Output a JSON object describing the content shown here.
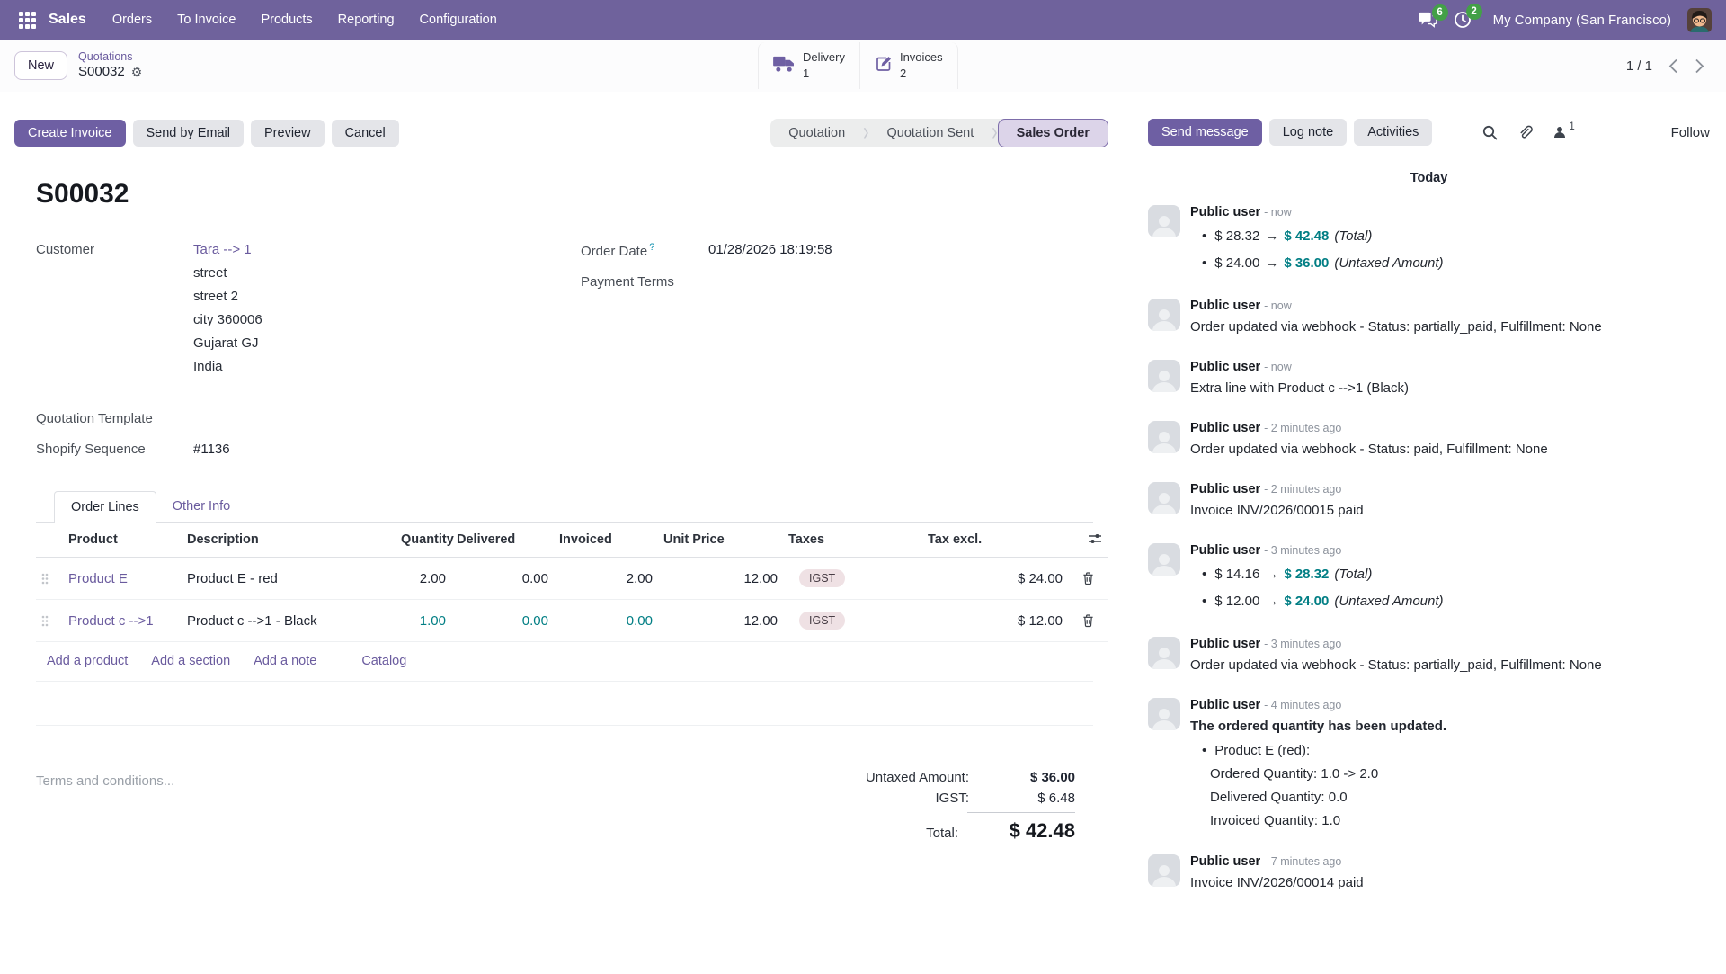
{
  "navbar": {
    "app_name": "Sales",
    "menus": [
      "Orders",
      "To Invoice",
      "Products",
      "Reporting",
      "Configuration"
    ],
    "messages_badge": "6",
    "activities_badge": "2",
    "company": "My Company (San Francisco)"
  },
  "control_panel": {
    "new_button": "New",
    "breadcrumb_parent": "Quotations",
    "breadcrumb_current": "S00032",
    "smart_buttons": [
      {
        "label": "Delivery",
        "value": "1",
        "icon": "truck-icon"
      },
      {
        "label": "Invoices",
        "value": "2",
        "icon": "invoice-edit-icon"
      }
    ],
    "pager": "1 / 1"
  },
  "actions": {
    "create_invoice": "Create Invoice",
    "send_by_email": "Send by Email",
    "preview": "Preview",
    "cancel": "Cancel"
  },
  "statusbar": {
    "steps": [
      "Quotation",
      "Quotation Sent",
      "Sales Order"
    ],
    "active": "Sales Order"
  },
  "form": {
    "title": "S00032",
    "customer_label": "Customer",
    "customer": "Tara --> 1",
    "address_lines": [
      "street",
      "street 2",
      "city 360006",
      "Gujarat GJ",
      "India"
    ],
    "order_date_label": "Order Date",
    "order_date_help": "?",
    "order_date": "01/28/2026 18:19:58",
    "payment_terms_label": "Payment Terms",
    "quotation_template_label": "Quotation Template",
    "shopify_sequence_label": "Shopify Sequence",
    "shopify_sequence": "#1136",
    "tabs": [
      "Order Lines",
      "Other Info"
    ],
    "active_tab": "Order Lines"
  },
  "order_lines": {
    "columns": [
      "Product",
      "Description",
      "Quantity",
      "Delivered",
      "Invoiced",
      "Unit Price",
      "Taxes",
      "Tax excl."
    ],
    "rows": [
      {
        "product": "Product E",
        "description": "Product E - red",
        "quantity": "2.00",
        "delivered": "0.00",
        "invoiced": "2.00",
        "unit_price": "12.00",
        "taxes": "IGST",
        "subtotal": "$ 24.00",
        "highlight": false
      },
      {
        "product": "Product c -->1",
        "description": "Product c -->1 - Black",
        "quantity": "1.00",
        "delivered": "0.00",
        "invoiced": "0.00",
        "unit_price": "12.00",
        "taxes": "IGST",
        "subtotal": "$ 12.00",
        "highlight": true
      }
    ],
    "footer_links": [
      "Add a product",
      "Add a section",
      "Add a note"
    ],
    "catalog_link": "Catalog"
  },
  "terms_placeholder": "Terms and conditions...",
  "totals": {
    "untaxed_label": "Untaxed Amount:",
    "untaxed": "$ 36.00",
    "tax_label": "IGST:",
    "tax": "$ 6.48",
    "total_label": "Total:",
    "total": "$ 42.48"
  },
  "chatter": {
    "send_message": "Send message",
    "log_note": "Log note",
    "activities": "Activities",
    "followers_count": "1",
    "follow": "Follow",
    "day_label": "Today",
    "messages": [
      {
        "author": "Public user",
        "time": "- now",
        "tracking": [
          {
            "old": "$ 28.32",
            "arrow": "→",
            "new": "$ 42.48",
            "field": "(Total)"
          },
          {
            "old": "$ 24.00",
            "arrow": "→",
            "new": "$ 36.00",
            "field": "(Untaxed Amount)"
          }
        ]
      },
      {
        "author": "Public user",
        "time": "- now",
        "text": "Order updated via webhook - Status: partially_paid, Fulfillment: None"
      },
      {
        "author": "Public user",
        "time": "- now",
        "text": "Extra line with Product c -->1 (Black)"
      },
      {
        "author": "Public user",
        "time": "- 2 minutes ago",
        "text": "Order updated via webhook - Status: paid, Fulfillment: None"
      },
      {
        "author": "Public user",
        "time": "- 2 minutes ago",
        "text": "Invoice INV/2026/00015 paid"
      },
      {
        "author": "Public user",
        "time": "- 3 minutes ago",
        "tracking": [
          {
            "old": "$ 14.16",
            "arrow": "→",
            "new": "$ 28.32",
            "field": "(Total)"
          },
          {
            "old": "$ 12.00",
            "arrow": "→",
            "new": "$ 24.00",
            "field": "(Untaxed Amount)"
          }
        ]
      },
      {
        "author": "Public user",
        "time": "- 3 minutes ago",
        "text": "Order updated via webhook - Status: partially_paid, Fulfillment: None"
      },
      {
        "author": "Public user",
        "time": "- 4 minutes ago",
        "bold_text": "The ordered quantity has been updated.",
        "detail_title": "Product E (red):",
        "details": [
          "Ordered Quantity: 1.0 -> 2.0",
          "Delivered Quantity: 0.0",
          "Invoiced Quantity: 1.0"
        ]
      },
      {
        "author": "Public user",
        "time": "- 7 minutes ago",
        "text": "Invoice INV/2026/00014 paid"
      }
    ]
  },
  "colors": {
    "navbar": "#6f629c",
    "accent": "#6e5fa3",
    "teal": "#017e84",
    "badge_green": "#43a047",
    "tag_bg": "#efe1e4",
    "status_active_bg": "#dcd4e9"
  }
}
